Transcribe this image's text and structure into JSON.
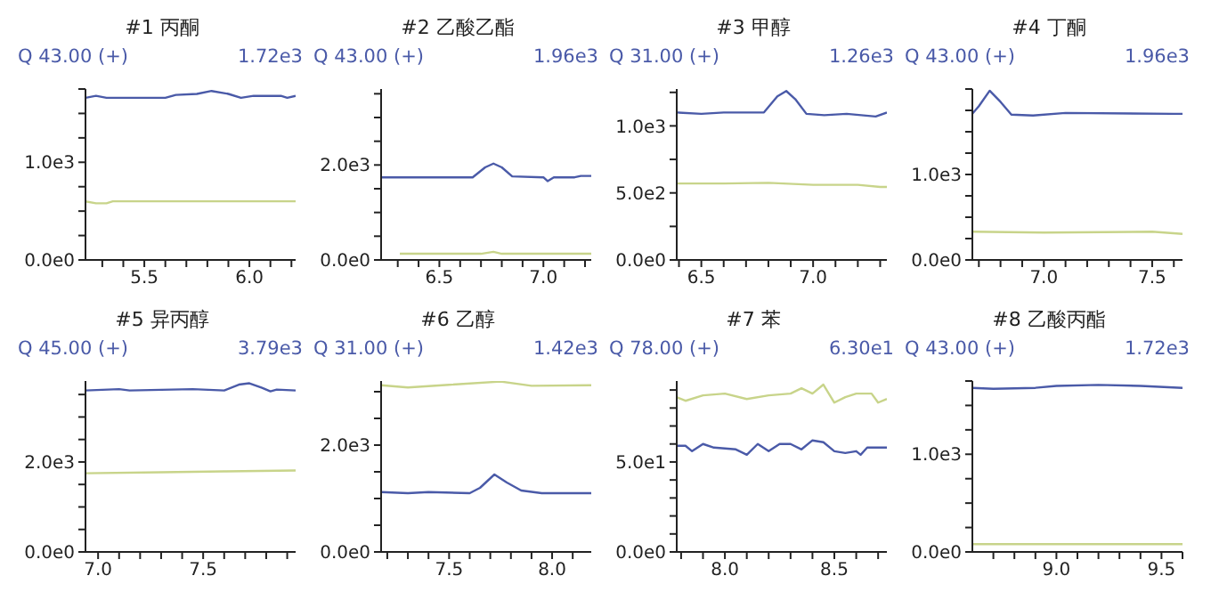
{
  "chart_data": [
    {
      "type": "line",
      "title": "#1 丙酮",
      "subtitle": "Q 43.00 (+)",
      "annotations": [
        "1.72e3"
      ],
      "xlim": [
        5.22,
        6.22
      ],
      "ylim": [
        0,
        1750
      ],
      "xticks": [
        {
          "value": 5.3,
          "label": null
        },
        {
          "value": 5.4,
          "label": null
        },
        5.5,
        {
          "value": 5.6,
          "label": null
        },
        {
          "value": 5.7,
          "label": null
        },
        {
          "value": 5.8,
          "label": null
        },
        {
          "value": 5.9,
          "label": null
        },
        {
          "value": 6,
          "label": "6.0"
        },
        {
          "value": 6.1,
          "label": null
        },
        {
          "value": 6.2,
          "label": null
        }
      ],
      "yticks": [
        {
          "value": 0,
          "label": "0.0e0"
        },
        {
          "value": 250,
          "label": null
        },
        {
          "value": 500,
          "label": null
        },
        {
          "value": 750,
          "label": null
        },
        {
          "value": 1000,
          "label": "1.0e3"
        },
        {
          "value": 1250,
          "label": null
        },
        {
          "value": 1500,
          "label": null
        },
        {
          "value": 1750,
          "label": null
        }
      ],
      "series": [
        {
          "color": "#4a5aa8",
          "x": [
            5.22,
            5.27,
            5.32,
            5.6,
            5.65,
            5.75,
            5.82,
            5.9,
            5.96,
            6.02,
            6.15,
            6.18,
            6.22
          ],
          "values": [
            1660,
            1680,
            1660,
            1660,
            1690,
            1700,
            1730,
            1700,
            1660,
            1680,
            1680,
            1660,
            1680
          ]
        },
        {
          "color": "#c8d48a",
          "x": [
            5.22,
            5.27,
            5.32,
            5.35,
            6.22
          ],
          "values": [
            600,
            580,
            580,
            600,
            600
          ]
        }
      ]
    },
    {
      "type": "line",
      "title": "#2 乙酸乙酯",
      "subtitle": "Q 43.00 (+)",
      "annotations": [
        "1.96e3"
      ],
      "xlim": [
        6.22,
        7.23
      ],
      "ylim": [
        0,
        3600
      ],
      "xticks": [
        {
          "value": 6.3,
          "label": null
        },
        {
          "value": 6.4,
          "label": null
        },
        6.5,
        {
          "value": 6.6,
          "label": null
        },
        {
          "value": 6.7,
          "label": null
        },
        {
          "value": 6.8,
          "label": null
        },
        {
          "value": 6.9,
          "label": null
        },
        {
          "value": 7,
          "label": "7.0"
        },
        {
          "value": 7.1,
          "label": null
        },
        {
          "value": 7.2,
          "label": null
        }
      ],
      "yticks": [
        {
          "value": 0,
          "label": "0.0e0"
        },
        {
          "value": 500,
          "label": null
        },
        {
          "value": 1000,
          "label": null
        },
        {
          "value": 1500,
          "label": null
        },
        {
          "value": 2000,
          "label": "2.0e3"
        },
        {
          "value": 2500,
          "label": null
        },
        {
          "value": 3000,
          "label": null
        },
        {
          "value": 3500,
          "label": null
        }
      ],
      "series": [
        {
          "color": "#4a5aa8",
          "x": [
            6.22,
            6.66,
            6.72,
            6.76,
            6.8,
            6.85,
            7.0,
            7.02,
            7.05,
            7.15,
            7.18,
            7.23
          ],
          "values": [
            1740,
            1740,
            1950,
            2030,
            1950,
            1760,
            1740,
            1660,
            1740,
            1740,
            1770,
            1770
          ]
        },
        {
          "color": "#c8d48a",
          "x": [
            6.31,
            6.7,
            6.76,
            6.8,
            7.23
          ],
          "values": [
            130,
            130,
            170,
            130,
            130
          ]
        }
      ]
    },
    {
      "type": "line",
      "title": "#3 甲醇",
      "subtitle": "Q 31.00 (+)",
      "annotations": [
        "1.26e3"
      ],
      "xlim": [
        6.39,
        7.33
      ],
      "ylim": [
        0,
        1275
      ],
      "xticks": [
        {
          "value": 6.4,
          "label": null
        },
        6.5,
        {
          "value": 6.6,
          "label": null
        },
        {
          "value": 6.7,
          "label": null
        },
        {
          "value": 6.8,
          "label": null
        },
        {
          "value": 6.9,
          "label": null
        },
        {
          "value": 7,
          "label": "7.0"
        },
        {
          "value": 7.1,
          "label": null
        },
        {
          "value": 7.2,
          "label": null
        },
        {
          "value": 7.3,
          "label": null
        }
      ],
      "yticks": [
        {
          "value": 0,
          "label": "0.0e0"
        },
        {
          "value": 250,
          "label": null
        },
        {
          "value": 500,
          "label": "5.0e2"
        },
        {
          "value": 750,
          "label": null
        },
        {
          "value": 1000,
          "label": "1.0e3"
        },
        {
          "value": 1250,
          "label": null
        }
      ],
      "series": [
        {
          "color": "#4a5aa8",
          "x": [
            6.39,
            6.5,
            6.6,
            6.78,
            6.84,
            6.88,
            6.92,
            6.97,
            7.05,
            7.15,
            7.28,
            7.33
          ],
          "values": [
            1100,
            1090,
            1100,
            1100,
            1220,
            1260,
            1200,
            1090,
            1080,
            1090,
            1070,
            1100
          ]
        },
        {
          "color": "#c8d48a",
          "x": [
            6.39,
            6.6,
            6.8,
            7.0,
            7.2,
            7.3,
            7.33
          ],
          "values": [
            570,
            570,
            575,
            560,
            560,
            545,
            545
          ]
        }
      ]
    },
    {
      "type": "line",
      "title": "#4 丁酮",
      "subtitle": "Q 43.00 (+)",
      "annotations": [
        "1.96e3"
      ],
      "xlim": [
        6.67,
        7.64
      ],
      "ylim": [
        0,
        2000
      ],
      "xticks": [
        {
          "value": 6.7,
          "label": null
        },
        {
          "value": 6.8,
          "label": null
        },
        {
          "value": 6.9,
          "label": null
        },
        {
          "value": 7,
          "label": "7.0"
        },
        {
          "value": 7.1,
          "label": null
        },
        {
          "value": 7.2,
          "label": null
        },
        {
          "value": 7.3,
          "label": null
        },
        {
          "value": 7.4,
          "label": null
        },
        7.5,
        {
          "value": 7.6,
          "label": null
        }
      ],
      "yticks": [
        {
          "value": 0,
          "label": "0.0e0"
        },
        {
          "value": 250,
          "label": null
        },
        {
          "value": 500,
          "label": null
        },
        {
          "value": 750,
          "label": null
        },
        {
          "value": 1000,
          "label": "1.0e3"
        },
        {
          "value": 1250,
          "label": null
        },
        {
          "value": 1500,
          "label": null
        },
        {
          "value": 1750,
          "label": null
        },
        {
          "value": 2000,
          "label": null
        }
      ],
      "series": [
        {
          "color": "#4a5aa8",
          "x": [
            6.67,
            6.7,
            6.75,
            6.8,
            6.85,
            6.95,
            7.1,
            7.6,
            7.64
          ],
          "values": [
            1710,
            1800,
            1980,
            1850,
            1700,
            1690,
            1720,
            1710,
            1710
          ]
        },
        {
          "color": "#c8d48a",
          "x": [
            6.67,
            7.0,
            7.5,
            7.64
          ],
          "values": [
            330,
            320,
            330,
            305
          ]
        }
      ]
    },
    {
      "type": "line",
      "title": "#5 异丙醇",
      "subtitle": "Q 45.00 (+)",
      "annotations": [
        "3.79e3"
      ],
      "xlim": [
        6.94,
        7.94
      ],
      "ylim": [
        0,
        3800
      ],
      "xticks": [
        {
          "value": 7,
          "label": "7.0"
        },
        {
          "value": 7.1,
          "label": null
        },
        {
          "value": 7.2,
          "label": null
        },
        {
          "value": 7.3,
          "label": null
        },
        {
          "value": 7.4,
          "label": null
        },
        7.5,
        {
          "value": 7.6,
          "label": null
        },
        {
          "value": 7.7,
          "label": null
        },
        {
          "value": 7.8,
          "label": null
        },
        {
          "value": 7.9,
          "label": null
        }
      ],
      "yticks": [
        {
          "value": 0,
          "label": "0.0e0"
        },
        {
          "value": 500,
          "label": null
        },
        {
          "value": 1000,
          "label": null
        },
        {
          "value": 1500,
          "label": null
        },
        {
          "value": 2000,
          "label": "2.0e3"
        },
        {
          "value": 2500,
          "label": null
        },
        {
          "value": 3000,
          "label": null
        },
        {
          "value": 3500,
          "label": null
        }
      ],
      "series": [
        {
          "color": "#4a5aa8",
          "x": [
            6.94,
            7.1,
            7.15,
            7.45,
            7.6,
            7.67,
            7.72,
            7.78,
            7.82,
            7.85,
            7.94
          ],
          "values": [
            3590,
            3620,
            3590,
            3620,
            3590,
            3720,
            3750,
            3650,
            3570,
            3610,
            3590
          ]
        },
        {
          "color": "#c8d48a",
          "x": [
            6.94,
            7.3,
            7.6,
            7.94
          ],
          "values": [
            1750,
            1770,
            1790,
            1810
          ]
        }
      ]
    },
    {
      "type": "line",
      "title": "#6 乙醇",
      "subtitle": "Q 31.00 (+)",
      "annotations": [
        "1.42e3"
      ],
      "xlim": [
        7.17,
        8.19
      ],
      "ylim": [
        0,
        3200
      ],
      "xticks": [
        {
          "value": 7.2,
          "label": null
        },
        {
          "value": 7.3,
          "label": null
        },
        {
          "value": 7.4,
          "label": null
        },
        7.5,
        {
          "value": 7.6,
          "label": null
        },
        {
          "value": 7.7,
          "label": null
        },
        {
          "value": 7.8,
          "label": null
        },
        {
          "value": 7.9,
          "label": null
        },
        {
          "value": 8,
          "label": "8.0"
        },
        {
          "value": 8.1,
          "label": null
        }
      ],
      "yticks": [
        {
          "value": 0,
          "label": "0.0e0"
        },
        {
          "value": 500,
          "label": null
        },
        {
          "value": 1000,
          "label": null
        },
        {
          "value": 1500,
          "label": null
        },
        {
          "value": 2000,
          "label": "2.0e3"
        },
        {
          "value": 2500,
          "label": null
        },
        {
          "value": 3000,
          "label": null
        }
      ],
      "series": [
        {
          "color": "#4a5aa8",
          "x": [
            7.17,
            7.3,
            7.4,
            7.6,
            7.65,
            7.72,
            7.78,
            7.85,
            7.95,
            8.19
          ],
          "values": [
            1120,
            1100,
            1120,
            1100,
            1200,
            1450,
            1300,
            1150,
            1100,
            1100
          ]
        },
        {
          "color": "#c8d48a",
          "x": [
            7.17,
            7.3,
            7.5,
            7.75,
            7.9,
            8.19
          ],
          "values": [
            3120,
            3080,
            3130,
            3190,
            3110,
            3120
          ]
        }
      ]
    },
    {
      "type": "line",
      "title": "#7 苯",
      "subtitle": "Q 78.00 (+)",
      "annotations": [
        "6.30e1"
      ],
      "xlim": [
        7.78,
        8.74
      ],
      "ylim": [
        0,
        95
      ],
      "xticks": [
        {
          "value": 7.8,
          "label": null
        },
        {
          "value": 7.9,
          "label": null
        },
        {
          "value": 8,
          "label": "8.0"
        },
        {
          "value": 8.1,
          "label": null
        },
        {
          "value": 8.2,
          "label": null
        },
        {
          "value": 8.3,
          "label": null
        },
        {
          "value": 8.4,
          "label": null
        },
        8.5,
        {
          "value": 8.6,
          "label": null
        },
        {
          "value": 8.7,
          "label": null
        }
      ],
      "yticks": [
        {
          "value": 0,
          "label": "0.0e0"
        },
        {
          "value": 10,
          "label": null
        },
        {
          "value": 20,
          "label": null
        },
        {
          "value": 30,
          "label": null
        },
        {
          "value": 40,
          "label": null
        },
        {
          "value": 50,
          "label": "5.0e1"
        },
        {
          "value": 60,
          "label": null
        },
        {
          "value": 70,
          "label": null
        },
        {
          "value": 80,
          "label": null
        },
        {
          "value": 90,
          "label": null
        }
      ],
      "series": [
        {
          "color": "#4a5aa8",
          "x": [
            7.78,
            7.82,
            7.85,
            7.9,
            7.95,
            8.05,
            8.1,
            8.15,
            8.2,
            8.25,
            8.3,
            8.35,
            8.4,
            8.45,
            8.5,
            8.55,
            8.6,
            8.62,
            8.65,
            8.74
          ],
          "values": [
            59,
            59,
            56,
            60,
            58,
            57,
            54,
            60,
            56,
            60,
            60,
            57,
            62,
            61,
            56,
            55,
            56,
            54,
            58,
            58
          ]
        },
        {
          "color": "#c8d48a",
          "x": [
            7.78,
            7.82,
            7.9,
            8.0,
            8.1,
            8.2,
            8.3,
            8.35,
            8.4,
            8.45,
            8.5,
            8.55,
            8.6,
            8.67,
            8.7,
            8.74
          ],
          "values": [
            86,
            84,
            87,
            88,
            85,
            87,
            88,
            91,
            88,
            93,
            83,
            86,
            88,
            88,
            83,
            85
          ]
        }
      ]
    },
    {
      "type": "line",
      "title": "#8 乙酸丙酯",
      "subtitle": "Q 43.00 (+)",
      "annotations": [
        "1.72e3"
      ],
      "xlim": [
        8.6,
        9.6
      ],
      "ylim": [
        0,
        1750
      ],
      "xticks": [
        {
          "value": 8.7,
          "label": null
        },
        {
          "value": 8.8,
          "label": null
        },
        {
          "value": 8.9,
          "label": null
        },
        {
          "value": 9,
          "label": "9.0"
        },
        {
          "value": 9.1,
          "label": null
        },
        {
          "value": 9.2,
          "label": null
        },
        {
          "value": 9.3,
          "label": null
        },
        {
          "value": 9.4,
          "label": null
        },
        9.5,
        {
          "value": 9.6,
          "label": null
        }
      ],
      "yticks": [
        {
          "value": 0,
          "label": "0.0e0"
        },
        {
          "value": 250,
          "label": null
        },
        {
          "value": 500,
          "label": null
        },
        {
          "value": 750,
          "label": null
        },
        {
          "value": 1000,
          "label": "1.0e3"
        },
        {
          "value": 1250,
          "label": null
        },
        {
          "value": 1500,
          "label": null
        },
        {
          "value": 1750,
          "label": null
        }
      ],
      "series": [
        {
          "color": "#4a5aa8",
          "x": [
            8.6,
            8.7,
            8.9,
            9.0,
            9.2,
            9.4,
            9.6
          ],
          "values": [
            1680,
            1670,
            1680,
            1700,
            1710,
            1700,
            1680
          ]
        },
        {
          "color": "#c8d48a",
          "x": [
            8.6,
            9.6
          ],
          "values": [
            80,
            80
          ]
        }
      ]
    }
  ]
}
